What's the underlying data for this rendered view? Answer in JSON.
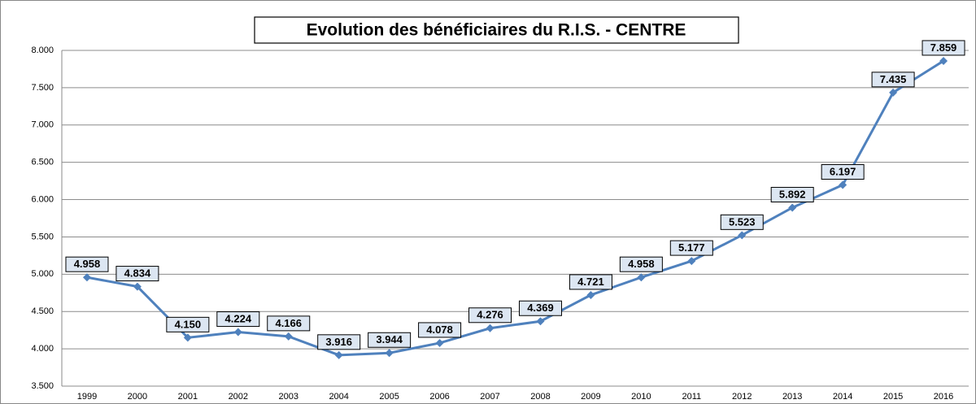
{
  "chart_data": {
    "type": "line",
    "title": "Evolution des bénéficiaires du R.I.S. - CENTRE",
    "categories": [
      "1999",
      "2000",
      "2001",
      "2002",
      "2003",
      "2004",
      "2005",
      "2006",
      "2007",
      "2008",
      "2009",
      "2010",
      "2011",
      "2012",
      "2013",
      "2014",
      "2015",
      "2016"
    ],
    "values": [
      4958,
      4834,
      4150,
      4224,
      4166,
      3916,
      3944,
      4078,
      4276,
      4369,
      4721,
      4958,
      5177,
      5523,
      5892,
      6197,
      7435,
      7859
    ],
    "value_labels": [
      "4.958",
      "4.834",
      "4.150",
      "4.224",
      "4.166",
      "3.916",
      "3.944",
      "4.078",
      "4.276",
      "4.369",
      "4.721",
      "4.958",
      "5.177",
      "5.523",
      "5.892",
      "6.197",
      "7.435",
      "7.859"
    ],
    "color": "#4f81bd",
    "ylim": [
      3500,
      8000
    ],
    "yticks": [
      {
        "value": 3500,
        "label": "3.500"
      },
      {
        "value": 4000,
        "label": "4.000"
      },
      {
        "value": 4500,
        "label": "4.500"
      },
      {
        "value": 5000,
        "label": "5.000"
      },
      {
        "value": 5500,
        "label": "5.500"
      },
      {
        "value": 6000,
        "label": "6.000"
      },
      {
        "value": 6500,
        "label": "6.500"
      },
      {
        "value": 7000,
        "label": "7.000"
      },
      {
        "value": 7500,
        "label": "7.500"
      },
      {
        "value": 8000,
        "label": "8.000"
      }
    ],
    "grid": true
  }
}
